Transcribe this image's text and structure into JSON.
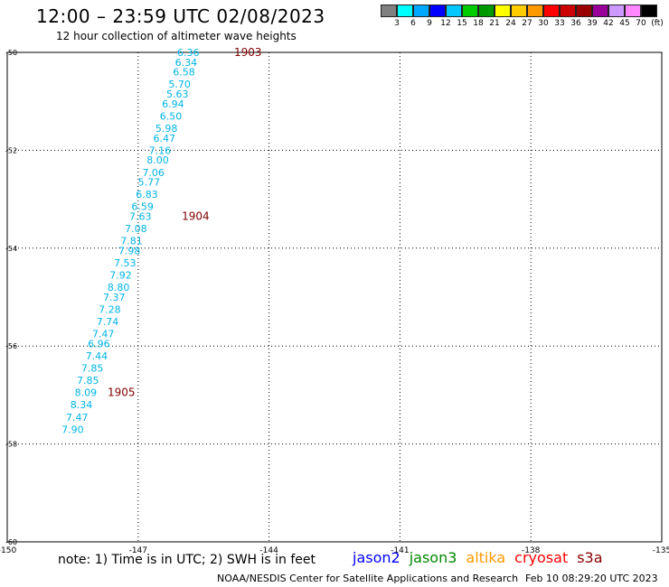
{
  "title": "12:00 – 23:59 UTC 02/08/2023",
  "subtitle": "12 hour collection of altimeter wave heights",
  "legend": {
    "colors": [
      "#808080",
      "#00ffff",
      "#00a8ff",
      "#0000ff",
      "#00c8ff",
      "#00cc00",
      "#009900",
      "#ffff00",
      "#ffcc00",
      "#ff9900",
      "#ff0000",
      "#cc0000",
      "#990000",
      "#990099",
      "#cc99ff",
      "#ff88ff",
      "#000000"
    ],
    "labels": [
      "3",
      "6",
      "9",
      "12",
      "15",
      "18",
      "21",
      "24",
      "27",
      "30",
      "33",
      "36",
      "39",
      "42",
      "45",
      "70",
      "(ft)"
    ]
  },
  "note": "note: 1) Time is in UTC; 2) SWH is in feet",
  "satellites": [
    {
      "name": "jason2",
      "color": "#0000ff"
    },
    {
      "name": "jason3",
      "color": "#008800"
    },
    {
      "name": "altika",
      "color": "#ff9900"
    },
    {
      "name": "cryosat",
      "color": "#ff0000"
    },
    {
      "name": "s3a",
      "color": "#880000"
    }
  ],
  "credit": "NOAA/NESDIS Center for Satellite Applications and Research",
  "credit_time": "Feb 10 08:29:20 UTC 2023",
  "chart_data": {
    "type": "scatter",
    "xlim": [
      -150,
      -135
    ],
    "ylim": [
      -60,
      -50
    ],
    "x_ticks": [
      "-150",
      "-147",
      "-144",
      "-141",
      "-138",
      "-135"
    ],
    "y_ticks": [
      "-50",
      "-52",
      "-54",
      "-56",
      "-58",
      "-60"
    ],
    "grid": true,
    "series_color": "#00b4e6",
    "time_label_color": "#800000",
    "points": [
      {
        "x": -145.85,
        "y": -50.0,
        "v": "6.36"
      },
      {
        "x": -145.9,
        "y": -50.2,
        "v": "6.34"
      },
      {
        "x": -145.95,
        "y": -50.4,
        "v": "6.58"
      },
      {
        "x": -146.05,
        "y": -50.65,
        "v": "5.70"
      },
      {
        "x": -146.1,
        "y": -50.85,
        "v": "5.63"
      },
      {
        "x": -146.2,
        "y": -51.05,
        "v": "6.94"
      },
      {
        "x": -146.25,
        "y": -51.3,
        "v": "6.50"
      },
      {
        "x": -146.35,
        "y": -51.55,
        "v": "5.98"
      },
      {
        "x": -146.4,
        "y": -51.75,
        "v": "6.47"
      },
      {
        "x": -146.5,
        "y": -52.0,
        "v": "7.16"
      },
      {
        "x": -146.55,
        "y": -52.2,
        "v": "8.00"
      },
      {
        "x": -146.65,
        "y": -52.45,
        "v": "7.06"
      },
      {
        "x": -146.75,
        "y": -52.65,
        "v": "5.77"
      },
      {
        "x": -146.8,
        "y": -52.9,
        "v": "6.83"
      },
      {
        "x": -146.9,
        "y": -53.15,
        "v": "6.59"
      },
      {
        "x": -146.95,
        "y": -53.35,
        "v": "7.63"
      },
      {
        "x": -147.05,
        "y": -53.6,
        "v": "7.08"
      },
      {
        "x": -147.15,
        "y": -53.85,
        "v": "7.81"
      },
      {
        "x": -147.2,
        "y": -54.05,
        "v": "7.98"
      },
      {
        "x": -147.3,
        "y": -54.3,
        "v": "7.53"
      },
      {
        "x": -147.4,
        "y": -54.55,
        "v": "7.92"
      },
      {
        "x": -147.45,
        "y": -54.8,
        "v": "8.80"
      },
      {
        "x": -147.55,
        "y": -55.0,
        "v": "7.37"
      },
      {
        "x": -147.65,
        "y": -55.25,
        "v": "7.28"
      },
      {
        "x": -147.7,
        "y": -55.5,
        "v": "7.74"
      },
      {
        "x": -147.8,
        "y": -55.75,
        "v": "7.47"
      },
      {
        "x": -147.9,
        "y": -55.95,
        "v": "6.96"
      },
      {
        "x": -147.95,
        "y": -56.2,
        "v": "7.44"
      },
      {
        "x": -148.05,
        "y": -56.45,
        "v": "7.85"
      },
      {
        "x": -148.15,
        "y": -56.7,
        "v": "7.85"
      },
      {
        "x": -148.2,
        "y": -56.95,
        "v": "8.09"
      },
      {
        "x": -148.3,
        "y": -57.2,
        "v": "8.34"
      },
      {
        "x": -148.4,
        "y": -57.45,
        "v": "7.47"
      },
      {
        "x": -148.5,
        "y": -57.7,
        "v": "7.90"
      }
    ],
    "time_labels": [
      {
        "x": -144.8,
        "y": -50.0,
        "label": "1903"
      },
      {
        "x": -146.0,
        "y": -53.35,
        "label": "1904"
      },
      {
        "x": -147.7,
        "y": -56.95,
        "label": "1905"
      }
    ]
  }
}
